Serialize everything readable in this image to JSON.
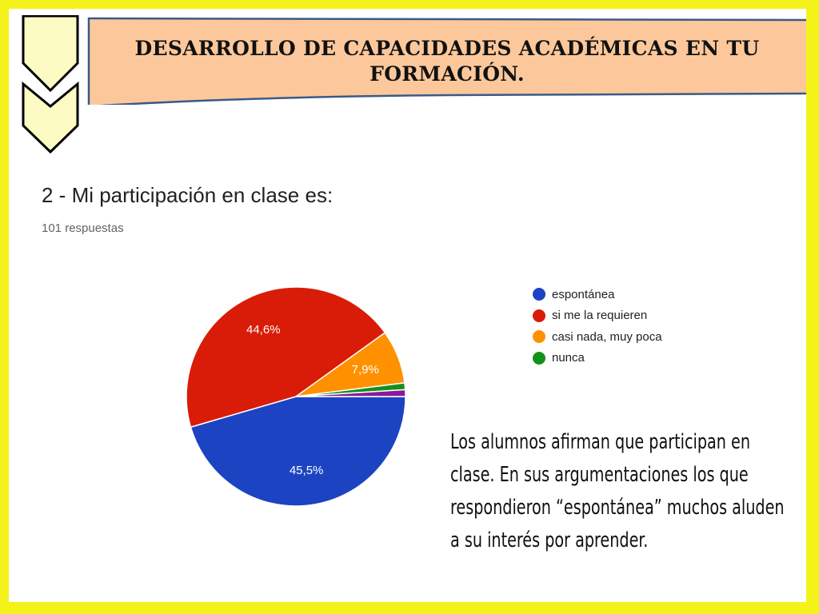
{
  "slide": {
    "title": "DESARROLLO DE CAPACIDADES ACADÉMICAS EN TU FORMACIÓN.",
    "commentary": "Los alumnos afirman que participan en clase. En sus argumentaciones los que respondieron “espontánea” muchos aluden a su interés por aprender.",
    "colors": {
      "border": "#f3f31a",
      "title_fill": "#fcc89b",
      "title_stroke": "#3b5a86",
      "chevron_fill": "#fdfbc4"
    },
    "icons": [
      "chevron-down-icon"
    ]
  },
  "question": {
    "title": "2 - Mi participación en clase es:",
    "responses": "101 respuestas"
  },
  "chart_data": {
    "type": "pie",
    "title": "2 - Mi participación en clase es:",
    "subtitle": "101 respuestas",
    "legend_position": "right",
    "slices": [
      {
        "label": "espontánea",
        "value": 45.5,
        "display": "45,5%",
        "color": "#1c44c2"
      },
      {
        "label": "si me la requieren",
        "value": 44.6,
        "display": "44,6%",
        "color": "#d91c08"
      },
      {
        "label": "casi nada, muy poca",
        "value": 7.9,
        "display": "7,9%",
        "color": "#ff9100"
      },
      {
        "label": "nunca",
        "value": 1.0,
        "display": "",
        "color": "#139119"
      },
      {
        "label": "",
        "value": 1.0,
        "display": "",
        "color": "#8a1a9b"
      }
    ]
  }
}
